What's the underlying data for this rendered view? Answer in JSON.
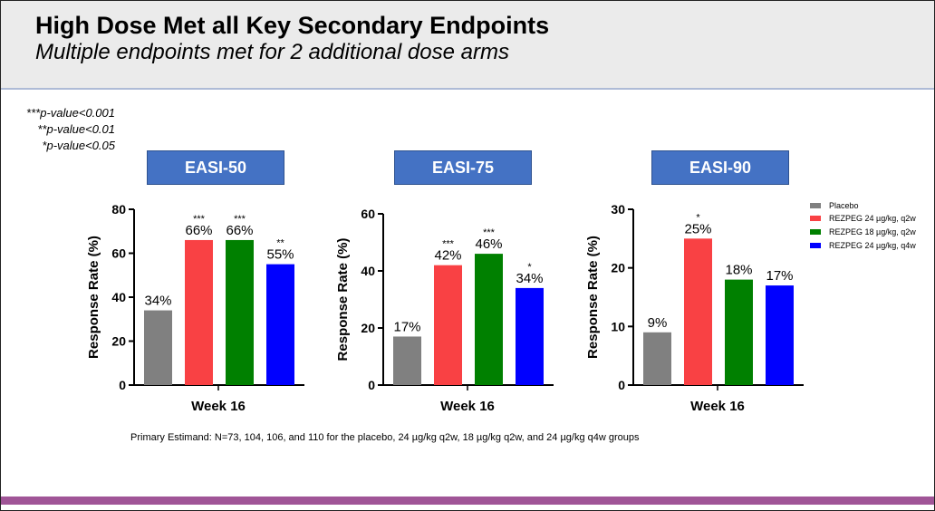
{
  "header": {
    "title": "High Dose Met all Key Secondary Endpoints",
    "subtitle": "Multiple endpoints met for 2 additional dose arms"
  },
  "pvalue_legend": [
    "***p-value<0.001",
    "**p-value<0.01",
    "*p-value<0.05"
  ],
  "footnote": "Primary Estimand: N=73, 104, 106, and 110 for the placebo, 24 µg/kg q2w, 18 µg/kg q2w, and 24 µg/kg q4w groups",
  "legend": [
    {
      "label": "Placebo",
      "color": "#808080"
    },
    {
      "label": "REZPEG 24 µg/kg, q2w",
      "color": "#f94144"
    },
    {
      "label": "REZPEG 18 µg/kg, q2w",
      "color": "#008000"
    },
    {
      "label": "REZPEG 24 µg/kg, q4w",
      "color": "#0000ff"
    }
  ],
  "chart_data": [
    {
      "type": "bar",
      "title": "EASI-50",
      "xlabel": "Week 16",
      "ylabel": "Response Rate (%)",
      "ylim": [
        0,
        80
      ],
      "yticks": [
        0,
        20,
        40,
        60,
        80
      ],
      "values": [
        34,
        66,
        66,
        55
      ],
      "labels": [
        "34%",
        "66%",
        "66%",
        "55%"
      ],
      "significance": [
        "",
        "***",
        "***",
        "**"
      ]
    },
    {
      "type": "bar",
      "title": "EASI-75",
      "xlabel": "Week 16",
      "ylabel": "Response Rate (%)",
      "ylim": [
        0,
        60
      ],
      "yticks": [
        0,
        20,
        40,
        60
      ],
      "values": [
        17,
        42,
        46,
        34
      ],
      "labels": [
        "17%",
        "42%",
        "46%",
        "34%"
      ],
      "significance": [
        "",
        "***",
        "***",
        "*"
      ]
    },
    {
      "type": "bar",
      "title": "EASI-90",
      "xlabel": "Week 16",
      "ylabel": "Response Rate (%)",
      "ylim": [
        0,
        30
      ],
      "yticks": [
        0,
        10,
        20,
        30
      ],
      "values": [
        9,
        25,
        18,
        17
      ],
      "labels": [
        "9%",
        "25%",
        "18%",
        "17%"
      ],
      "significance": [
        "",
        "*",
        "",
        ""
      ]
    }
  ]
}
